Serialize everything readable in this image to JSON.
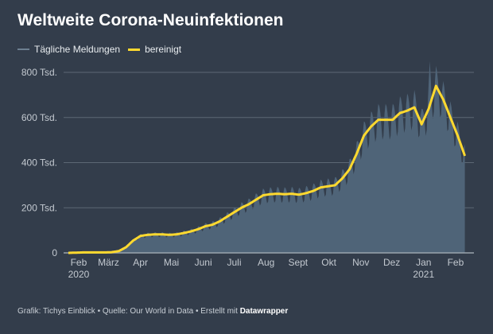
{
  "chart_data": {
    "type": "area",
    "title": "Weltweite Corona-Neuinfektionen",
    "legend": [
      {
        "label": "Tägliche Meldungen",
        "color": "#6d7f90"
      },
      {
        "label": "bereinigt",
        "color": "#ffd92f"
      }
    ],
    "legend_placement": "top-left",
    "ylim": [
      0,
      800
    ],
    "yticks": [
      {
        "value": 0,
        "label": "0"
      },
      {
        "value": 200,
        "label": "200 Tsd."
      },
      {
        "value": 400,
        "label": "400 Tsd."
      },
      {
        "value": 600,
        "label": "600 Tsd."
      },
      {
        "value": 800,
        "label": "800 Tsd."
      }
    ],
    "xticks": [
      {
        "day": 10,
        "label": "Feb",
        "year": "2020"
      },
      {
        "day": 39,
        "label": "März"
      },
      {
        "day": 70,
        "label": "Apr"
      },
      {
        "day": 100,
        "label": "Mai"
      },
      {
        "day": 131,
        "label": "Juni"
      },
      {
        "day": 161,
        "label": "Juli"
      },
      {
        "day": 192,
        "label": "Aug"
      },
      {
        "day": 223,
        "label": "Sept"
      },
      {
        "day": 253,
        "label": "Okt"
      },
      {
        "day": 284,
        "label": "Nov"
      },
      {
        "day": 314,
        "label": "Dez"
      },
      {
        "day": 345,
        "label": "Jan",
        "year": "2021"
      },
      {
        "day": 376,
        "label": "Feb"
      }
    ],
    "x_start": "2020-01-22",
    "x_step_days": 7,
    "unit": "Tsd.",
    "smoothed": [
      0,
      1,
      2,
      2,
      2,
      2,
      3,
      8,
      25,
      55,
      75,
      80,
      82,
      82,
      80,
      82,
      88,
      95,
      105,
      118,
      125,
      140,
      160,
      180,
      200,
      215,
      235,
      255,
      260,
      262,
      260,
      262,
      258,
      265,
      275,
      290,
      295,
      300,
      330,
      370,
      440,
      520,
      560,
      590,
      590,
      590,
      620,
      630,
      645,
      570,
      640,
      740,
      680,
      600,
      520,
      430
    ],
    "daily_weekly_pattern": [
      1.12,
      1.1,
      1.05,
      0.95,
      0.85,
      0.88,
      1.05
    ],
    "daily_peaks": [
      {
        "day": 351,
        "value": 850
      }
    ]
  },
  "footer": {
    "text": "Grafik: Tichys Einblick • Quelle: Our World in Data • Erstellt mit ",
    "brand": "Datawrapper"
  }
}
